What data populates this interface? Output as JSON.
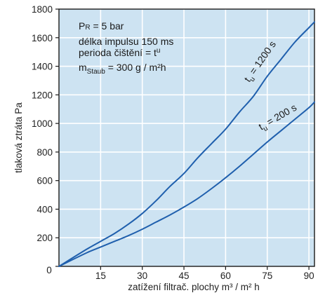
{
  "colors": {
    "plot_background": "#cde3f2",
    "grid": "#ffffff",
    "curve": "#1f5fad",
    "axis": "#1a1a1a",
    "text": "#222222"
  },
  "annotation": {
    "line1_main": "P",
    "line1_sub": "R",
    "line1_rest": " = 5 bar",
    "line2": "délka impulsu 150 ms",
    "line3_main": "perioda čištění = t",
    "line3_sub": "u",
    "line4_main": "m",
    "line4_sub": "Staub",
    "line4_rest": " = 300 g / m²h"
  },
  "chart_data": {
    "type": "line",
    "xlabel": "zatížení filtrač. plochy  m³ / m² h",
    "ylabel": "tlaková ztráta   Pa",
    "xlim": [
      0,
      92
    ],
    "ylim": [
      0,
      1800
    ],
    "x_ticks": [
      15,
      30,
      45,
      60,
      75,
      90
    ],
    "y_ticks": [
      0,
      200,
      400,
      600,
      800,
      1000,
      1200,
      1400,
      1600,
      1800
    ],
    "grid": true,
    "series": [
      {
        "name_main": "t",
        "name_sub": "u",
        "name_rest": " = 1200 s",
        "x": [
          0,
          10,
          15,
          20,
          25,
          30,
          35,
          40,
          45,
          50,
          55,
          60,
          65,
          70,
          75,
          80,
          85,
          90,
          92
        ],
        "y": [
          0,
          120,
          175,
          230,
          295,
          370,
          460,
          560,
          650,
          760,
          860,
          960,
          1080,
          1190,
          1330,
          1450,
          1570,
          1670,
          1710
        ]
      },
      {
        "name_main": "t",
        "name_sub": "u",
        "name_rest": " = 200 s",
        "x": [
          0,
          10,
          15,
          20,
          25,
          30,
          35,
          40,
          45,
          50,
          55,
          60,
          65,
          70,
          75,
          80,
          85,
          90,
          92
        ],
        "y": [
          0,
          95,
          135,
          175,
          215,
          260,
          310,
          360,
          415,
          475,
          545,
          620,
          700,
          785,
          870,
          950,
          1030,
          1110,
          1150
        ]
      }
    ]
  }
}
